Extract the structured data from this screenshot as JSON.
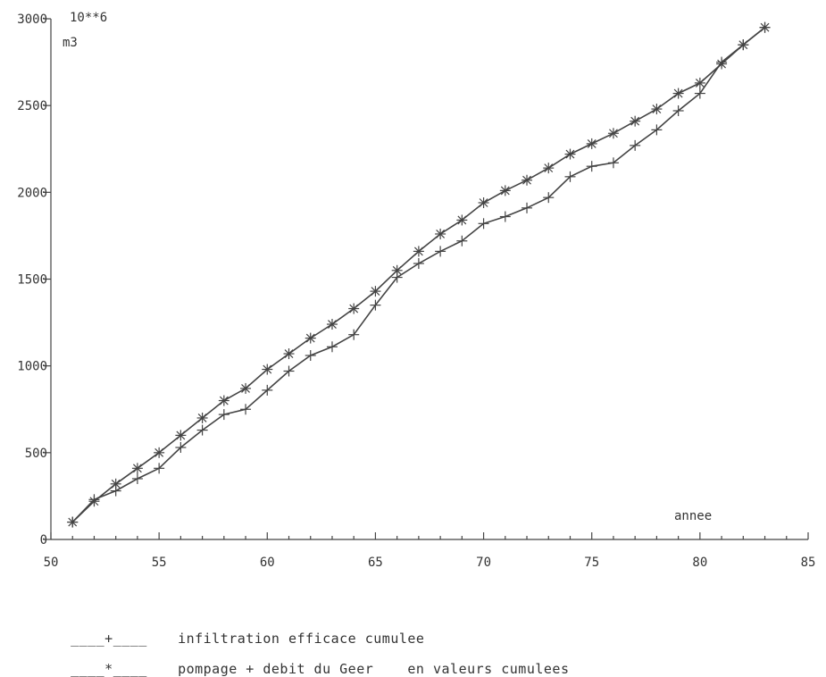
{
  "chart_data": {
    "type": "line",
    "unit_label_1": "10**6",
    "unit_label_2": "m3",
    "xlabel": "annee",
    "ylabel": "",
    "xlim": [
      50,
      85
    ],
    "ylim": [
      0,
      3000
    ],
    "x_ticks": [
      50,
      55,
      60,
      65,
      70,
      75,
      80,
      85
    ],
    "y_ticks": [
      0,
      500,
      1000,
      1500,
      2000,
      2500,
      3000
    ],
    "grid": false,
    "series": [
      {
        "name": "infiltration efficace cumulee",
        "marker": "+",
        "x": [
          51,
          52,
          53,
          54,
          55,
          56,
          57,
          58,
          59,
          60,
          61,
          62,
          63,
          64,
          65,
          66,
          67,
          68,
          69,
          70,
          71,
          72,
          73,
          74,
          75,
          76,
          77,
          78,
          79,
          80,
          81,
          82,
          83
        ],
        "values": [
          100,
          230,
          280,
          350,
          410,
          530,
          630,
          720,
          750,
          860,
          970,
          1060,
          1110,
          1180,
          1350,
          1510,
          1590,
          1660,
          1720,
          1820,
          1860,
          1910,
          1970,
          2090,
          2150,
          2170,
          2270,
          2360,
          2470,
          2570,
          2750,
          2850,
          2950
        ]
      },
      {
        "name": "pompage + debit du Geer",
        "marker": "*",
        "x": [
          51,
          52,
          53,
          54,
          55,
          56,
          57,
          58,
          59,
          60,
          61,
          62,
          63,
          64,
          65,
          66,
          67,
          68,
          69,
          70,
          71,
          72,
          73,
          74,
          75,
          76,
          77,
          78,
          79,
          80,
          81,
          82,
          83
        ],
        "values": [
          100,
          220,
          320,
          410,
          500,
          600,
          700,
          800,
          870,
          980,
          1070,
          1160,
          1240,
          1330,
          1430,
          1550,
          1660,
          1760,
          1840,
          1940,
          2010,
          2070,
          2140,
          2220,
          2280,
          2340,
          2410,
          2480,
          2570,
          2630,
          2740,
          2850,
          2950
        ]
      }
    ],
    "legend": [
      {
        "sample": "____+____",
        "text": "infiltration efficace cumulee"
      },
      {
        "sample": "____*____",
        "text": "pompage + debit du Geer    en valeurs cumulees"
      }
    ]
  }
}
